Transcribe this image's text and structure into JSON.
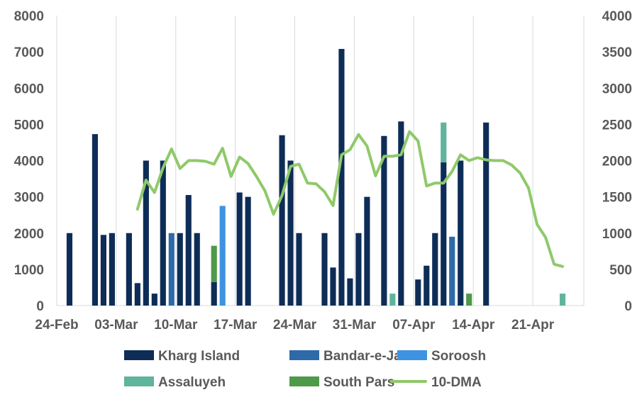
{
  "chart_data": {
    "type": "bar+line",
    "title": "",
    "x_labels": [
      "24-Feb",
      "03-Mar",
      "10-Mar",
      "17-Mar",
      "24-Mar",
      "31-Mar",
      "07-Apr",
      "14-Apr",
      "21-Apr"
    ],
    "y_left": {
      "min": 0,
      "max": 8000,
      "ticks": [
        "0",
        "1000",
        "2000",
        "3000",
        "4000",
        "5000",
        "6000",
        "7000",
        "8000"
      ]
    },
    "y_right": {
      "min": 0,
      "max": 4000,
      "ticks": [
        "0",
        "500",
        "1000",
        "1500",
        "2000",
        "2500",
        "3000",
        "3500",
        "4000"
      ]
    },
    "grid": "vertical",
    "legend_position": "bottom",
    "series": [
      {
        "name": "Kharg Island",
        "type": "bar",
        "axis": "left",
        "color": "#0d2d57",
        "values": [
          {
            "day": 1,
            "v": 2000
          },
          {
            "day": 4,
            "v": 4730
          },
          {
            "day": 5,
            "v": 1950
          },
          {
            "day": 6,
            "v": 2000
          },
          {
            "day": 8,
            "v": 2000
          },
          {
            "day": 9,
            "v": 620
          },
          {
            "day": 10,
            "v": 4000
          },
          {
            "day": 11,
            "v": 330
          },
          {
            "day": 12,
            "v": 4000
          },
          {
            "day": 14,
            "v": 2000
          },
          {
            "day": 15,
            "v": 3050
          },
          {
            "day": 16,
            "v": 2000
          },
          {
            "day": 18,
            "v": 650
          },
          {
            "day": 21,
            "v": 3120
          },
          {
            "day": 22,
            "v": 3000
          },
          {
            "day": 26,
            "v": 4700
          },
          {
            "day": 27,
            "v": 4000
          },
          {
            "day": 28,
            "v": 2000
          },
          {
            "day": 31,
            "v": 2000
          },
          {
            "day": 32,
            "v": 1050
          },
          {
            "day": 33,
            "v": 7080
          },
          {
            "day": 34,
            "v": 750
          },
          {
            "day": 35,
            "v": 2000
          },
          {
            "day": 36,
            "v": 3000
          },
          {
            "day": 38,
            "v": 4680
          },
          {
            "day": 40,
            "v": 5080
          },
          {
            "day": 42,
            "v": 720
          },
          {
            "day": 43,
            "v": 1100
          },
          {
            "day": 44,
            "v": 2000
          },
          {
            "day": 45,
            "v": 3950
          },
          {
            "day": 47,
            "v": 4000
          },
          {
            "day": 50,
            "v": 5050
          }
        ]
      },
      {
        "name": "Bandar-e-Jask",
        "type": "bar",
        "axis": "left",
        "color": "#2e6aa8",
        "values": [
          {
            "day": 13,
            "v": 2000
          },
          {
            "day": 46,
            "v": 1900
          }
        ]
      },
      {
        "name": "Soroosh",
        "type": "bar",
        "axis": "left",
        "color": "#3e93e0",
        "values": [
          {
            "day": 19,
            "v": 2750
          }
        ]
      },
      {
        "name": "Assaluyeh",
        "type": "bar",
        "axis": "left",
        "color": "#5fb49c",
        "values": [
          {
            "day": 39,
            "v": 330
          },
          {
            "day": 45,
            "v": 1100
          },
          {
            "day": 59,
            "v": 330
          }
        ]
      },
      {
        "name": "South Pars",
        "type": "bar",
        "axis": "left",
        "color": "#4e9a48",
        "values": [
          {
            "day": 18,
            "v": 1000
          },
          {
            "day": 48,
            "v": 330
          }
        ]
      },
      {
        "name": "10-DMA",
        "type": "line",
        "axis": "right",
        "color": "#8fc96a",
        "points": [
          {
            "day": 9,
            "v": 1330
          },
          {
            "day": 10,
            "v": 1730
          },
          {
            "day": 11,
            "v": 1560
          },
          {
            "day": 12,
            "v": 1900
          },
          {
            "day": 13,
            "v": 2160
          },
          {
            "day": 14,
            "v": 1890
          },
          {
            "day": 15,
            "v": 2000
          },
          {
            "day": 16,
            "v": 2000
          },
          {
            "day": 17,
            "v": 1990
          },
          {
            "day": 18,
            "v": 1950
          },
          {
            "day": 19,
            "v": 2170
          },
          {
            "day": 20,
            "v": 1780
          },
          {
            "day": 21,
            "v": 2050
          },
          {
            "day": 22,
            "v": 1960
          },
          {
            "day": 23,
            "v": 1780
          },
          {
            "day": 24,
            "v": 1580
          },
          {
            "day": 25,
            "v": 1260
          },
          {
            "day": 26,
            "v": 1520
          },
          {
            "day": 27,
            "v": 1920
          },
          {
            "day": 28,
            "v": 1950
          },
          {
            "day": 29,
            "v": 1690
          },
          {
            "day": 30,
            "v": 1680
          },
          {
            "day": 31,
            "v": 1570
          },
          {
            "day": 32,
            "v": 1380
          },
          {
            "day": 33,
            "v": 2080
          },
          {
            "day": 34,
            "v": 2150
          },
          {
            "day": 35,
            "v": 2360
          },
          {
            "day": 36,
            "v": 2200
          },
          {
            "day": 37,
            "v": 1790
          },
          {
            "day": 38,
            "v": 2060
          },
          {
            "day": 39,
            "v": 2060
          },
          {
            "day": 40,
            "v": 2080
          },
          {
            "day": 41,
            "v": 2400
          },
          {
            "day": 42,
            "v": 2270
          },
          {
            "day": 43,
            "v": 1650
          },
          {
            "day": 44,
            "v": 1690
          },
          {
            "day": 45,
            "v": 1690
          },
          {
            "day": 46,
            "v": 1850
          },
          {
            "day": 47,
            "v": 2080
          },
          {
            "day": 48,
            "v": 2000
          },
          {
            "day": 49,
            "v": 2040
          },
          {
            "day": 50,
            "v": 2010
          },
          {
            "day": 51,
            "v": 2000
          },
          {
            "day": 52,
            "v": 2000
          },
          {
            "day": 53,
            "v": 1940
          },
          {
            "day": 54,
            "v": 1830
          },
          {
            "day": 55,
            "v": 1620
          },
          {
            "day": 56,
            "v": 1120
          },
          {
            "day": 57,
            "v": 940
          },
          {
            "day": 58,
            "v": 570
          },
          {
            "day": 59,
            "v": 540
          }
        ]
      }
    ]
  }
}
